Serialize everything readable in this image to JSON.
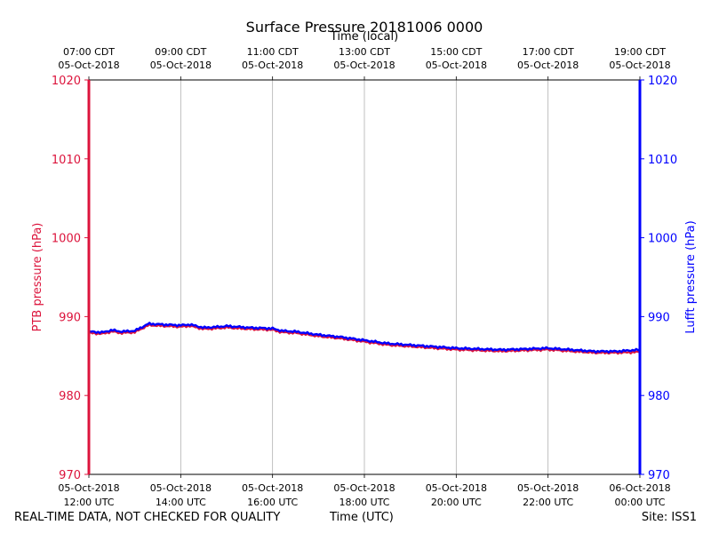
{
  "chart_data": {
    "type": "line",
    "title": "Surface Pressure 20181006 0000",
    "xlabel": "Time (UTC)",
    "x2label": "Time (local)",
    "ylabel_left": "PTB pressure (hPa)",
    "ylabel_right": "Lufft pressure (hPa)",
    "ylim": [
      970,
      1020
    ],
    "yticks": [
      970,
      980,
      990,
      1000,
      1010,
      1020
    ],
    "xlim_hours_utc": [
      12,
      24
    ],
    "grid": "vertical",
    "bottom_ticks": [
      {
        "hour": 12,
        "line1": "05-Oct-2018",
        "line2": "12:00 UTC"
      },
      {
        "hour": 14,
        "line1": "05-Oct-2018",
        "line2": "14:00 UTC"
      },
      {
        "hour": 16,
        "line1": "05-Oct-2018",
        "line2": "16:00 UTC"
      },
      {
        "hour": 18,
        "line1": "05-Oct-2018",
        "line2": "18:00 UTC"
      },
      {
        "hour": 20,
        "line1": "05-Oct-2018",
        "line2": "20:00 UTC"
      },
      {
        "hour": 22,
        "line1": "05-Oct-2018",
        "line2": "22:00 UTC"
      },
      {
        "hour": 24,
        "line1": "06-Oct-2018",
        "line2": "00:00 UTC"
      }
    ],
    "top_ticks": [
      {
        "hour": 12,
        "line1": "07:00 CDT",
        "line2": "05-Oct-2018"
      },
      {
        "hour": 14,
        "line1": "09:00 CDT",
        "line2": "05-Oct-2018"
      },
      {
        "hour": 16,
        "line1": "11:00 CDT",
        "line2": "05-Oct-2018"
      },
      {
        "hour": 18,
        "line1": "13:00 CDT",
        "line2": "05-Oct-2018"
      },
      {
        "hour": 20,
        "line1": "15:00 CDT",
        "line2": "05-Oct-2018"
      },
      {
        "hour": 22,
        "line1": "17:00 CDT",
        "line2": "05-Oct-2018"
      },
      {
        "hour": 24,
        "line1": "19:00 CDT",
        "line2": "05-Oct-2018"
      }
    ],
    "series": [
      {
        "name": "PTB pressure",
        "axis": "left",
        "color": "#dc143c",
        "x_hours": [
          12.0,
          12.3,
          12.5,
          12.7,
          13.0,
          13.3,
          13.6,
          14.0,
          14.2,
          14.5,
          14.8,
          15.0,
          15.5,
          16.0,
          16.2,
          16.5,
          17.0,
          17.5,
          18.0,
          18.5,
          19.0,
          19.5,
          20.0,
          20.5,
          21.0,
          21.5,
          22.0,
          22.5,
          23.0,
          23.5,
          24.0
        ],
        "values": [
          987.9,
          987.8,
          988.1,
          987.9,
          988.0,
          988.9,
          988.8,
          988.7,
          988.8,
          988.4,
          988.5,
          988.6,
          988.4,
          988.3,
          988.0,
          987.9,
          987.5,
          987.2,
          986.8,
          986.4,
          986.2,
          986.0,
          985.8,
          985.7,
          985.6,
          985.7,
          985.8,
          985.6,
          985.4,
          985.4,
          985.5
        ]
      },
      {
        "name": "Lufft pressure",
        "axis": "right",
        "color": "#0000ff",
        "x_hours": [
          12.0,
          12.3,
          12.5,
          12.7,
          13.0,
          13.3,
          13.6,
          14.0,
          14.2,
          14.5,
          14.8,
          15.0,
          15.5,
          16.0,
          16.2,
          16.5,
          17.0,
          17.5,
          18.0,
          18.5,
          19.0,
          19.5,
          20.0,
          20.5,
          21.0,
          21.5,
          22.0,
          22.5,
          23.0,
          23.5,
          24.0
        ],
        "values": [
          988.1,
          988.0,
          988.3,
          988.1,
          988.2,
          989.1,
          989.0,
          988.9,
          989.0,
          988.6,
          988.7,
          988.8,
          988.6,
          988.5,
          988.2,
          988.1,
          987.7,
          987.4,
          987.0,
          986.6,
          986.4,
          986.2,
          986.0,
          985.9,
          985.8,
          985.9,
          986.0,
          985.8,
          985.6,
          985.6,
          985.8
        ]
      }
    ]
  },
  "footer": {
    "left": "REAL-TIME DATA, NOT CHECKED FOR QUALITY",
    "center": "Time (UTC)",
    "right": "Site: ISS1"
  }
}
